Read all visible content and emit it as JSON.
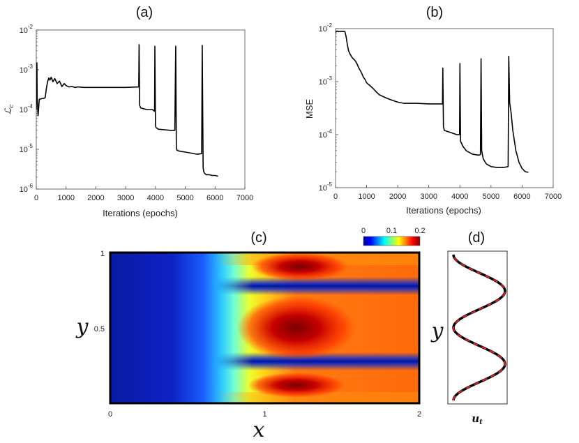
{
  "chart_data": [
    {
      "panel": "(a)",
      "type": "line",
      "xlabel": "Iterations (epochs)",
      "ylabel": "ℒ",
      "ylabel_sub": "c",
      "yscale": "log",
      "xlim": [
        0,
        7000
      ],
      "ylim_exp": [
        -6,
        -2
      ],
      "xticks": [
        "0",
        "1000",
        "2000",
        "3000",
        "4000",
        "5000",
        "6000",
        "7000"
      ],
      "yticks_base": "10",
      "yticks_exp": [
        "-6",
        "-5",
        "-4",
        "-3",
        "-2"
      ],
      "color": "#000000",
      "series": [
        {
          "x": [
            0,
            20,
            30,
            60,
            100,
            150,
            200,
            250,
            300,
            340,
            380,
            420,
            460,
            500,
            560,
            620,
            700,
            780,
            860,
            940,
            1000,
            1100,
            1200,
            1300,
            1400,
            1600,
            2000,
            2500,
            3000,
            3440,
            3450,
            3470,
            3500,
            3600,
            3700,
            3900,
            3970,
            3980,
            4000,
            4020,
            4100,
            4300,
            4500,
            4650,
            4680,
            4700,
            4720,
            4800,
            5000,
            5200,
            5400,
            5550,
            5570,
            5600,
            5620,
            5650,
            5700,
            5800,
            5900,
            6000,
            6100
          ],
          "y": [
            0.0001,
            0.0015,
            0.0002,
            7e-05,
            0.00018,
            0.000185,
            0.00019,
            0.00019,
            0.0002,
            0.00034,
            0.0005,
            0.00062,
            0.00055,
            0.00065,
            0.0005,
            0.0006,
            0.00045,
            0.00052,
            0.00038,
            0.00045,
            0.0004,
            0.00037,
            0.00038,
            0.00036,
            0.00037,
            0.00036,
            0.00036,
            0.00036,
            0.00036,
            0.00037,
            0.0043,
            0.00013,
            0.00011,
            0.000105,
            0.0001,
            0.0001,
            9e-05,
            0.0039,
            4e-05,
            3.5e-05,
            3.2e-05,
            3.1e-05,
            3e-05,
            3e-05,
            0.0039,
            1.1e-05,
            9.5e-06,
            9e-06,
            8.5e-06,
            8e-06,
            7.5e-06,
            7.8e-06,
            0.0041,
            3.5e-06,
            2.7e-06,
            2.5e-06,
            2.3e-06,
            2.3e-06,
            2.2e-06,
            2.2e-06,
            2.1e-06
          ]
        }
      ]
    },
    {
      "panel": "(b)",
      "type": "line",
      "xlabel": "Iterations (epochs)",
      "ylabel": "MSE",
      "yscale": "log",
      "xlim": [
        0,
        7000
      ],
      "ylim_exp": [
        -5,
        -2
      ],
      "xticks": [
        "0",
        "1000",
        "2000",
        "3000",
        "4000",
        "5000",
        "6000",
        "7000"
      ],
      "yticks_base": "10",
      "yticks_exp": [
        "-5",
        "-4",
        "-3",
        "-2"
      ],
      "color": "#000000",
      "series": [
        {
          "x": [
            0,
            40,
            100,
            200,
            300,
            340,
            380,
            420,
            480,
            540,
            600,
            650,
            700,
            750,
            800,
            850,
            900,
            950,
            1000,
            1100,
            1200,
            1300,
            1400,
            1600,
            1800,
            2000,
            2200,
            2600,
            3000,
            3400,
            3440,
            3450,
            3470,
            3500,
            3700,
            3900,
            3990,
            4000,
            4020,
            4100,
            4200,
            4400,
            4600,
            4660,
            4680,
            4700,
            4750,
            4850,
            5000,
            5200,
            5400,
            5550,
            5570,
            5600,
            5650,
            5700,
            5800,
            5900,
            6000,
            6100,
            6200
          ],
          "y": [
            0.0085,
            0.009,
            0.0088,
            0.0089,
            0.0088,
            0.007,
            0.005,
            0.0038,
            0.0032,
            0.0028,
            0.0026,
            0.0024,
            0.0021,
            0.0018,
            0.0016,
            0.0014,
            0.0012,
            0.0011,
            0.00095,
            0.00085,
            0.00075,
            0.00065,
            0.00057,
            0.0005,
            0.00045,
            0.00041,
            0.00039,
            0.00039,
            0.00038,
            0.00038,
            0.00038,
            0.0018,
            0.00014,
            0.00012,
            0.00011,
            0.0001,
            0.0001,
            0.0022,
            7.5e-05,
            6e-05,
            5e-05,
            4.3e-05,
            4.1e-05,
            4.2e-05,
            0.0027,
            5e-05,
            3.5e-05,
            2.8e-05,
            2.5e-05,
            2.4e-05,
            2.4e-05,
            2.5e-05,
            0.003,
            0.0004,
            0.00025,
            0.00012,
            5e-05,
            3e-05,
            2.3e-05,
            2e-05,
            1.95e-05
          ]
        }
      ]
    },
    {
      "panel": "(c)",
      "type": "heatmap",
      "xlabel": "x",
      "ylabel": "y",
      "xlim": [
        0,
        2
      ],
      "ylim": [
        0,
        1
      ],
      "xticks": [
        "0",
        "1",
        "2"
      ],
      "yticks": [
        "0.5",
        "1"
      ],
      "colorbar": {
        "range": [
          0,
          0.2
        ],
        "ticks": [
          "0",
          "0.1",
          "0.2"
        ],
        "colormap": "jet"
      }
    },
    {
      "panel": "(d)",
      "type": "line",
      "xlabel": "u",
      "xlabel_sub": "t",
      "ylabel": "y",
      "series_colors": [
        "#000000",
        "#e8262a"
      ]
    }
  ]
}
